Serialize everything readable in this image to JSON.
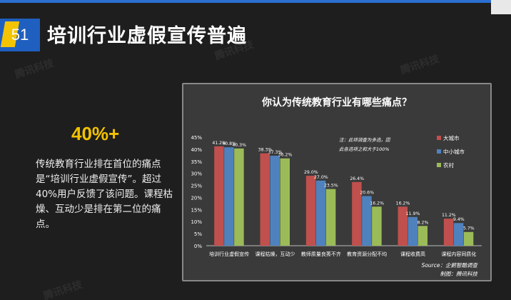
{
  "slide": {
    "number": "51",
    "title": "培训行业虚假宣传普遍"
  },
  "highlight": {
    "stat": "40%+",
    "description": "传统教育行业排在首位的痛点是“培训行业虚假宣传”。超过40%用户反馈了该问题。课程枯燥、互动少是排在第二位的痛点。"
  },
  "watermarks": [
    "腾讯科技",
    "腾讯科技",
    "腾讯科技",
    "腾讯科技"
  ],
  "colors": {
    "accent_blue": "#1f5fbf",
    "accent_yellow": "#f2c200",
    "series_red": "#c0504d",
    "series_blue": "#4f81bd",
    "series_green": "#9bbb59"
  },
  "chart_data": {
    "type": "bar",
    "title": "你认为传统教育行业有哪些痛点？",
    "categories": [
      "培训行业虚假宣传",
      "课程枯燥，互动少",
      "教师质量良莠不齐",
      "教育资源分配不均",
      "课程收费高",
      "课程内容同质化"
    ],
    "series": [
      {
        "name": "大城市",
        "color": "#c0504d",
        "values": [
          41.2,
          38.3,
          29.0,
          26.4,
          16.2,
          11.2
        ],
        "labels": [
          "41.2%",
          "38.3%",
          "29.0%",
          "26.4%",
          "16.2%",
          "11.2%"
        ]
      },
      {
        "name": "中小城市",
        "color": "#4f81bd",
        "values": [
          40.8,
          37.3,
          27.0,
          20.6,
          11.9,
          9.4
        ],
        "labels": [
          "40.8%",
          "37.3%",
          "27.0%",
          "20.6%",
          "11.9%",
          "9.4%"
        ]
      },
      {
        "name": "农村",
        "color": "#9bbb59",
        "values": [
          40.3,
          36.2,
          23.5,
          16.2,
          8.2,
          5.7
        ],
        "labels": [
          "40.3%",
          "36.2%",
          "23.5%",
          "16.2%",
          "8.2%",
          "5.7%"
        ]
      }
    ],
    "ylim": [
      0,
      45
    ],
    "yticks": [
      "0%",
      "5%",
      "10%",
      "15%",
      "20%",
      "25%",
      "30%",
      "35%",
      "40%",
      "45%"
    ],
    "note": [
      "注：此项调查为多选，因",
      "此各选项之和大于100%"
    ],
    "source": "Source：企鹅智酷调查",
    "credit": "制图：腾讯科技",
    "grid": false,
    "legend_position": "top-right"
  }
}
